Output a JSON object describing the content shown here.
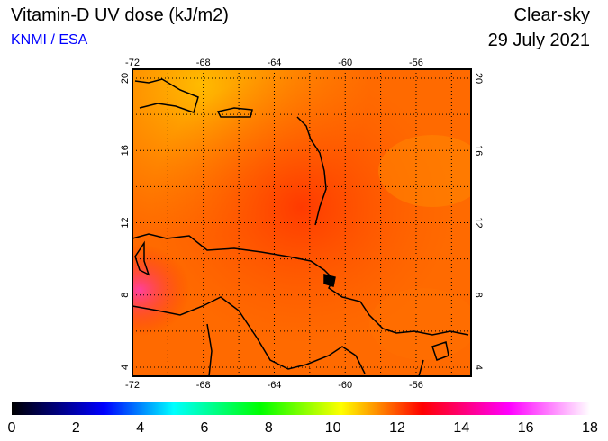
{
  "header": {
    "title": "Vitamin-D UV dose (kJ/m2)",
    "credit": "KNMI / ESA",
    "condition": "Clear-sky",
    "date": "29 July 2021"
  },
  "map": {
    "lon_ticks": [
      "-72",
      "-68",
      "-64",
      "-60",
      "-56"
    ],
    "lat_ticks": [
      "20",
      "16",
      "12",
      "8",
      "4"
    ],
    "lon_range": [
      -72,
      -52.9
    ],
    "lat_range": [
      3.5,
      20.5
    ]
  },
  "colorbar": {
    "labels": [
      "0",
      "2",
      "4",
      "6",
      "8",
      "10",
      "12",
      "14",
      "16",
      "18"
    ],
    "range": [
      0,
      18
    ],
    "stops": [
      "#000000",
      "#0000ff",
      "#00ffff",
      "#00ff00",
      "#ffff00",
      "#ff0000",
      "#ff00ff",
      "#ffffff"
    ]
  }
}
